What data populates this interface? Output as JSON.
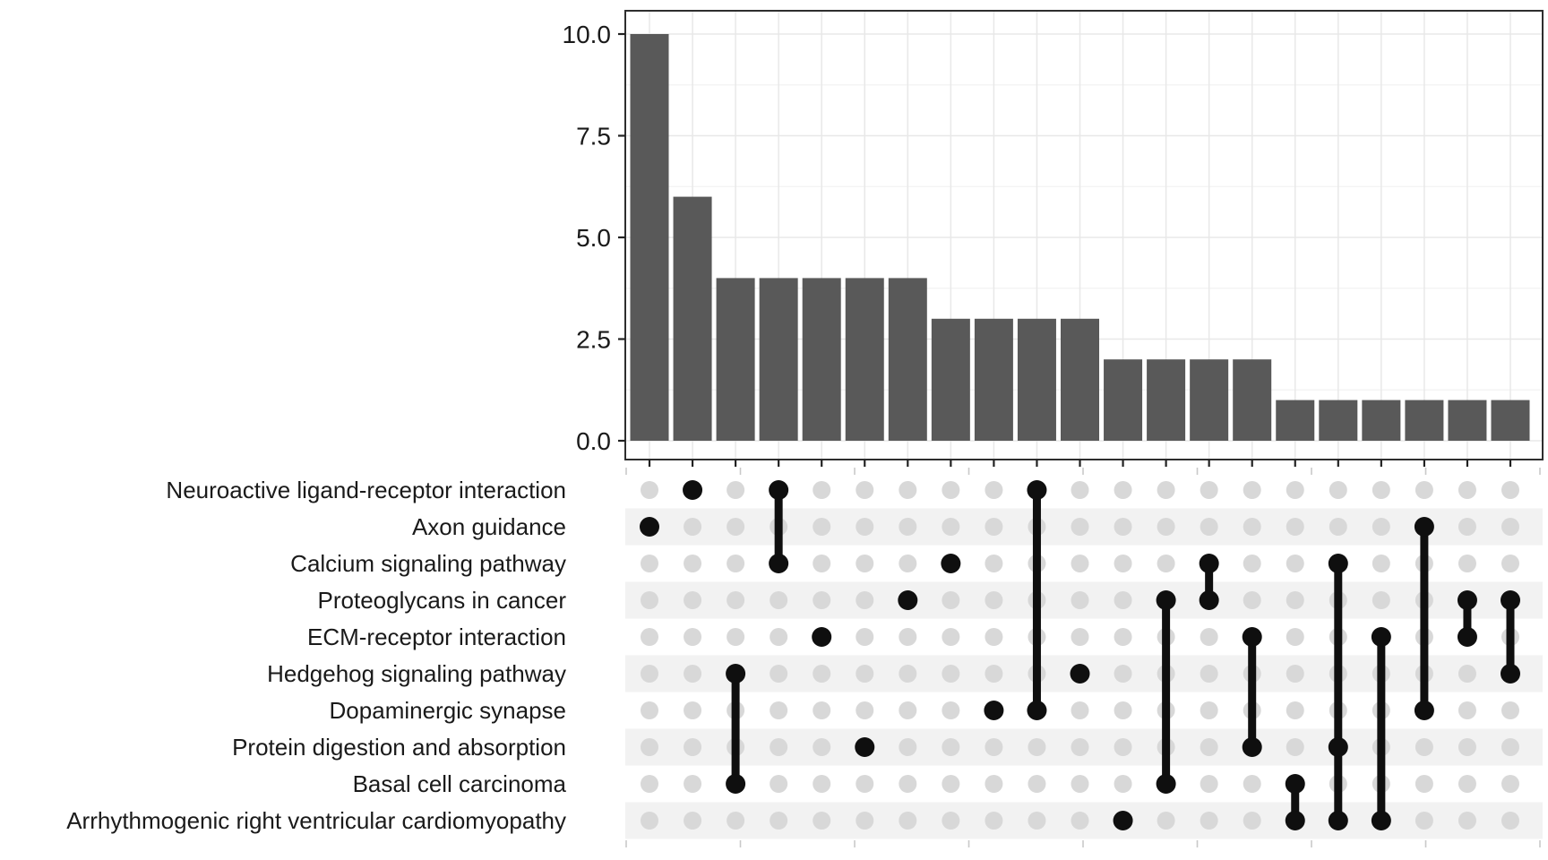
{
  "chart_data": {
    "type": "upset",
    "title": "",
    "xlabel": "",
    "ylabel": "",
    "legend": "none",
    "grid": "major+minor",
    "y_ticks": [
      "0.0",
      "2.5",
      "5.0",
      "7.5",
      "10.0"
    ],
    "y_tick_values": [
      0,
      2.5,
      5,
      7.5,
      10
    ],
    "y_minor_tick_values": [
      1.25,
      3.75,
      6.25,
      8.75
    ],
    "ylim": [
      0,
      10
    ],
    "categories": [
      "Neuroactive ligand-receptor interaction",
      "Axon guidance",
      "Calcium signaling pathway",
      "Proteoglycans in cancer",
      "ECM-receptor interaction",
      "Hedgehog signaling pathway",
      "Dopaminergic synapse",
      "Protein digestion and absorption",
      "Basal cell carcinoma",
      "Arrhythmogenic right ventricular cardiomyopathy"
    ],
    "intersections": [
      {
        "size": 10,
        "members": [
          "Axon guidance"
        ]
      },
      {
        "size": 6,
        "members": [
          "Neuroactive ligand-receptor interaction"
        ]
      },
      {
        "size": 4,
        "members": [
          "Hedgehog signaling pathway",
          "Basal cell carcinoma"
        ]
      },
      {
        "size": 4,
        "members": [
          "Neuroactive ligand-receptor interaction",
          "Calcium signaling pathway"
        ]
      },
      {
        "size": 4,
        "members": [
          "ECM-receptor interaction"
        ]
      },
      {
        "size": 4,
        "members": [
          "Protein digestion and absorption"
        ]
      },
      {
        "size": 4,
        "members": [
          "Proteoglycans in cancer"
        ]
      },
      {
        "size": 3,
        "members": [
          "Calcium signaling pathway"
        ]
      },
      {
        "size": 3,
        "members": [
          "Dopaminergic synapse"
        ]
      },
      {
        "size": 3,
        "members": [
          "Neuroactive ligand-receptor interaction",
          "Dopaminergic synapse"
        ]
      },
      {
        "size": 3,
        "members": [
          "Hedgehog signaling pathway"
        ]
      },
      {
        "size": 2,
        "members": [
          "Arrhythmogenic right ventricular cardiomyopathy"
        ]
      },
      {
        "size": 2,
        "members": [
          "Proteoglycans in cancer",
          "Basal cell carcinoma"
        ]
      },
      {
        "size": 2,
        "members": [
          "Calcium signaling pathway",
          "Proteoglycans in cancer"
        ]
      },
      {
        "size": 2,
        "members": [
          "ECM-receptor interaction",
          "Protein digestion and absorption"
        ]
      },
      {
        "size": 1,
        "members": [
          "Basal cell carcinoma",
          "Arrhythmogenic right ventricular cardiomyopathy"
        ]
      },
      {
        "size": 1,
        "members": [
          "Calcium signaling pathway",
          "Protein digestion and absorption",
          "Arrhythmogenic right ventricular cardiomyopathy"
        ]
      },
      {
        "size": 1,
        "members": [
          "ECM-receptor interaction",
          "Arrhythmogenic right ventricular cardiomyopathy"
        ]
      },
      {
        "size": 1,
        "members": [
          "Axon guidance",
          "Dopaminergic synapse"
        ]
      },
      {
        "size": 1,
        "members": [
          "Proteoglycans in cancer",
          "ECM-receptor interaction"
        ]
      },
      {
        "size": 1,
        "members": [
          "Proteoglycans in cancer",
          "Hedgehog signaling pathway"
        ]
      }
    ],
    "colors": {
      "bar": "#595959",
      "dot_inactive": "#d8d8d8",
      "dot_active": "#0f0f0f",
      "connector": "#0f0f0f",
      "stripe": "#f2f2f2",
      "grid_major": "#e8e8e8",
      "grid_minor": "#f3f3f3",
      "panel_border": "#2e2e2e",
      "axis_tick": "#222222",
      "minor_axis_tick": "#c9c9c9",
      "text": "#1a1a1a",
      "background": "#ffffff"
    }
  }
}
